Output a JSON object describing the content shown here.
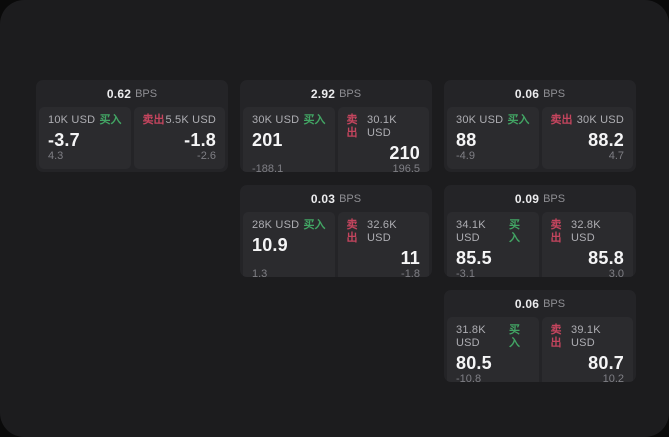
{
  "labels": {
    "bps_unit": "BPS",
    "buy": "买入",
    "sell": "卖出"
  },
  "colors": {
    "buy_green": "#42a564",
    "sell_red": "#c4455e",
    "panel_background": "#1c1c1e",
    "card_background": "#242427",
    "side_panel_background": "#2b2b2e"
  },
  "cards": [
    {
      "bps": "0.62",
      "buy": {
        "notional": "10K USD",
        "price": "-3.7",
        "pnl": "4.3"
      },
      "sell": {
        "notional": "5.5K USD",
        "price": "-1.8",
        "pnl": "-2.6"
      }
    },
    {
      "bps": "2.92",
      "buy": {
        "notional": "30K USD",
        "price": "201",
        "pnl": "-188.1"
      },
      "sell": {
        "notional": "30.1K USD",
        "price": "210",
        "pnl": "196.5"
      }
    },
    {
      "bps": "0.06",
      "buy": {
        "notional": "30K USD",
        "price": "88",
        "pnl": "-4.9"
      },
      "sell": {
        "notional": "30K USD",
        "price": "88.2",
        "pnl": "4.7"
      }
    },
    {
      "bps": "0.03",
      "buy": {
        "notional": "28K USD",
        "price": "10.9",
        "pnl": "1.3"
      },
      "sell": {
        "notional": "32.6K USD",
        "price": "11",
        "pnl": "-1.8"
      }
    },
    {
      "bps": "0.09",
      "buy": {
        "notional": "34.1K USD",
        "price": "85.5",
        "pnl": "-3.1"
      },
      "sell": {
        "notional": "32.8K USD",
        "price": "85.8",
        "pnl": "3.0"
      }
    },
    {
      "bps": "0.06",
      "buy": {
        "notional": "31.8K USD",
        "price": "80.5",
        "pnl": "-10.8"
      },
      "sell": {
        "notional": "39.1K USD",
        "price": "80.7",
        "pnl": "10.2"
      }
    }
  ]
}
